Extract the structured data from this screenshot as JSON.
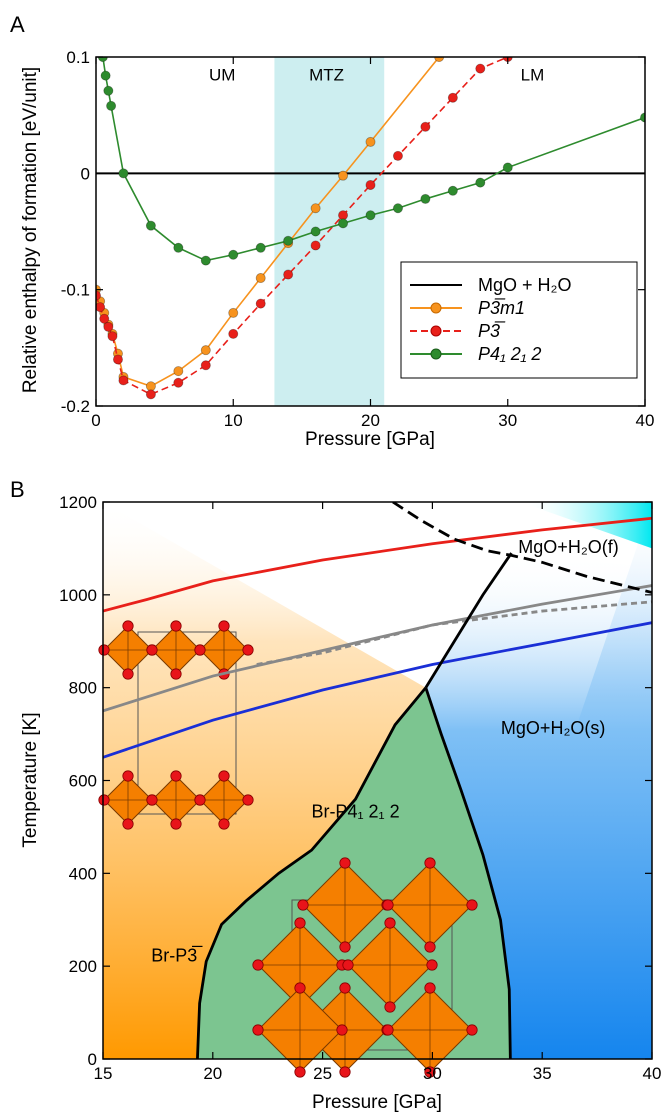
{
  "chart_data": [
    {
      "type": "line",
      "panel_label": "A",
      "xlabel": "Pressure [GPa]",
      "ylabel": "Relative enthalpy of formation [eV/unit]",
      "xlim": [
        0,
        40
      ],
      "ylim": [
        -0.2,
        0.1
      ],
      "xticks": [
        "0",
        "10",
        "20",
        "30",
        "40"
      ],
      "yticks": [
        "-0.2",
        "-0.1",
        "0",
        "0.1"
      ],
      "shaded_band": {
        "x": [
          13,
          21
        ],
        "color": "#cdeef0"
      },
      "region_labels": [
        {
          "text": "UM",
          "x": 9.2,
          "y": 0.08
        },
        {
          "text": "MTZ",
          "x": 16.8,
          "y": 0.08
        },
        {
          "text": "LM",
          "x": 31.8,
          "y": 0.08
        }
      ],
      "legend_position": "lower-right",
      "series": [
        {
          "name": "MgO + H₂O",
          "color": "#000000",
          "style": "solid",
          "markers": false,
          "x": [
            0,
            40
          ],
          "y": [
            0,
            0
          ]
        },
        {
          "name": "P3̅m1",
          "color": "#f7931e",
          "style": "solid",
          "markers": true,
          "x": [
            0,
            0.3,
            0.6,
            0.9,
            1.2,
            1.6,
            2,
            4,
            6,
            8,
            10,
            12,
            14,
            16,
            18,
            20,
            25
          ],
          "y": [
            -0.1,
            -0.11,
            -0.12,
            -0.13,
            -0.138,
            -0.155,
            -0.175,
            -0.183,
            -0.17,
            -0.152,
            -0.12,
            -0.09,
            -0.06,
            -0.03,
            -0.002,
            0.027,
            0.1
          ]
        },
        {
          "name": "P3̅",
          "color": "#e8201a",
          "style": "dashed",
          "markers": true,
          "x": [
            0,
            0.3,
            0.6,
            0.9,
            1.2,
            1.6,
            2,
            4,
            6,
            8,
            10,
            12,
            14,
            16,
            18,
            20,
            22,
            24,
            26,
            28,
            30
          ],
          "y": [
            -0.105,
            -0.115,
            -0.125,
            -0.132,
            -0.14,
            -0.16,
            -0.178,
            -0.19,
            -0.18,
            -0.165,
            -0.138,
            -0.112,
            -0.087,
            -0.062,
            -0.036,
            -0.01,
            0.015,
            0.04,
            0.065,
            0.09,
            0.1
          ]
        },
        {
          "name": "P4₁ 2₁ 2",
          "color": "#2e8b2e",
          "style": "solid",
          "markers": true,
          "x": [
            0.5,
            0.7,
            0.9,
            1.1,
            2,
            4,
            6,
            8,
            10,
            12,
            14,
            16,
            18,
            20,
            22,
            24,
            26,
            28,
            30,
            40
          ],
          "y": [
            0.1,
            0.084,
            0.071,
            0.058,
            0,
            -0.045,
            -0.064,
            -0.075,
            -0.07,
            -0.064,
            -0.058,
            -0.05,
            -0.043,
            -0.036,
            -0.03,
            -0.022,
            -0.015,
            -0.008,
            0.005,
            0.048
          ]
        }
      ]
    },
    {
      "type": "area",
      "panel_label": "B",
      "xlabel": "Pressure [GPa]",
      "ylabel": "Temperature [K]",
      "xlim": [
        15,
        40
      ],
      "ylim": [
        0,
        1200
      ],
      "xticks": [
        "15",
        "20",
        "25",
        "30",
        "35",
        "40"
      ],
      "yticks": [
        "0",
        "200",
        "400",
        "600",
        "800",
        "1000",
        "1200"
      ],
      "phase_labels": [
        {
          "text": "Br-P3̅",
          "x": 17.2,
          "y": 210
        },
        {
          "text": "Br-P4₁ 2₁ 2",
          "x": 26.5,
          "y": 520
        },
        {
          "text": "MgO+H₂O(s)",
          "x": 35.5,
          "y": 700
        },
        {
          "text": "MgO+H₂O(f)",
          "x": 36.2,
          "y": 1090
        }
      ],
      "boundaries": {
        "brp3_p41": {
          "x": [
            19.3,
            19.4,
            19.7,
            20.4,
            21.5,
            23,
            24.5,
            26.5,
            28.3,
            29.7
          ],
          "y": [
            0,
            120,
            210,
            290,
            340,
            400,
            450,
            560,
            720,
            800
          ]
        },
        "p41_solid": {
          "x": [
            29.7,
            30.4,
            31.3,
            32.3,
            33.1,
            33.5,
            33.55
          ],
          "y": [
            800,
            700,
            580,
            440,
            300,
            150,
            0
          ]
        },
        "p41_upper": {
          "x": [
            29.7,
            31,
            32.3,
            33.6
          ],
          "y": [
            800,
            900,
            1000,
            1090
          ]
        },
        "melt_dashed": {
          "x": [
            28.2,
            29.5,
            31,
            32.5,
            33.6,
            35,
            37,
            40
          ],
          "y": [
            1200,
            1160,
            1120,
            1095,
            1085,
            1070,
            1040,
            1005
          ]
        }
      },
      "isotherms": [
        {
          "name": "red",
          "color": "#e8201a",
          "style": "solid",
          "x": [
            15,
            17,
            20,
            25,
            30,
            35,
            40
          ],
          "y": [
            965,
            990,
            1030,
            1075,
            1110,
            1140,
            1165
          ]
        },
        {
          "name": "gray",
          "color": "#888888",
          "style": "solid",
          "x": [
            15,
            17,
            20,
            25,
            30,
            35,
            40
          ],
          "y": [
            750,
            780,
            825,
            880,
            935,
            980,
            1020
          ]
        },
        {
          "name": "gray-dashed",
          "color": "#888888",
          "style": "dashed",
          "x": [
            22,
            25,
            30,
            35,
            40
          ],
          "y": [
            850,
            875,
            935,
            965,
            985
          ]
        },
        {
          "name": "blue",
          "color": "#1a2fd6",
          "style": "solid",
          "x": [
            15,
            20,
            25,
            30,
            35,
            40
          ],
          "y": [
            650,
            730,
            795,
            850,
            895,
            940
          ]
        }
      ],
      "colors": {
        "orange": "#ff9d0a",
        "green": "#7cc590",
        "blue": "#1a8cf0",
        "cyan": "#00e5ee"
      }
    }
  ]
}
